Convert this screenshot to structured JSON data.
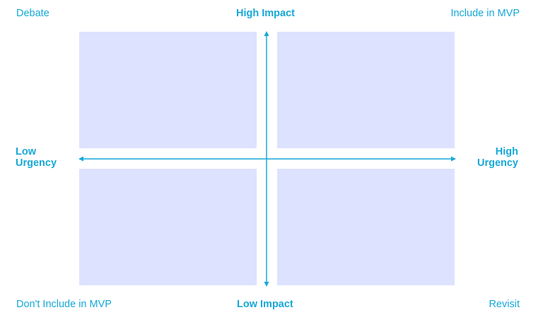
{
  "corners": {
    "top_left": "Debate",
    "top_right": "Include in MVP",
    "bottom_left": "Don't Include in MVP",
    "bottom_right": "Revisit"
  },
  "axes": {
    "top": "High Impact",
    "bottom": "Low Impact",
    "left_line1": "Low",
    "left_line2": "Urgency",
    "right_line1": "High",
    "right_line2": "Urgency"
  },
  "colors": {
    "accent": "#16a8d8",
    "quadrant_fill": "#dde2ff"
  }
}
